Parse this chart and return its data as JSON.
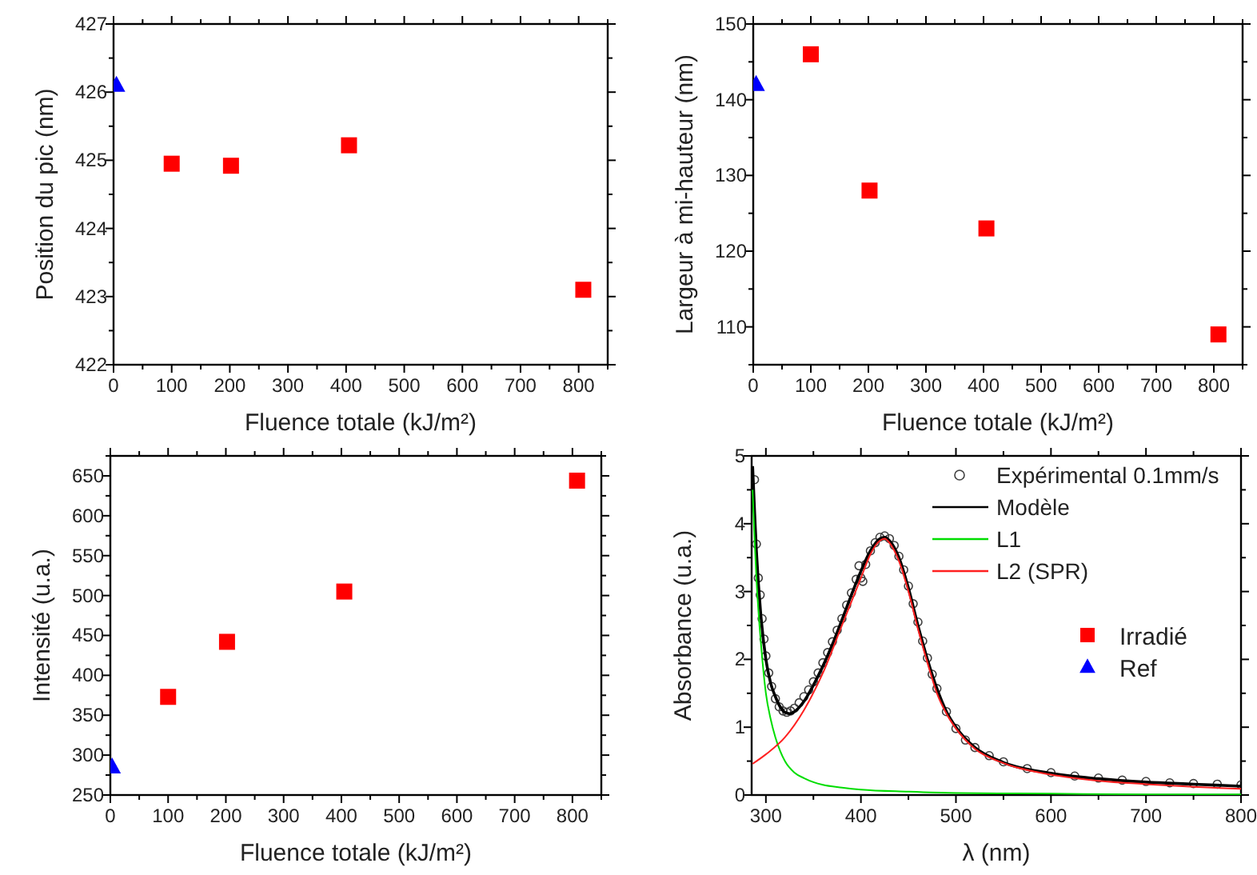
{
  "chart_data": [
    {
      "type": "scatter",
      "xlabel": "Fluence totale (kJ/m²)",
      "ylabel": "Position du pic (nm)",
      "xlim": [
        0,
        850
      ],
      "xticks": [
        0,
        100,
        200,
        300,
        400,
        500,
        600,
        700,
        800
      ],
      "ylim": [
        422,
        427
      ],
      "yticks": [
        422,
        423,
        424,
        425,
        426,
        427
      ],
      "legend": "bottom right",
      "series": [
        {
          "name": "Irradié",
          "color": "#ff0000",
          "marker": "square",
          "x": [
            100,
            202,
            405,
            808
          ],
          "values": [
            424.95,
            424.92,
            425.22,
            423.1
          ]
        },
        {
          "name": "Ref",
          "color": "#0000ff",
          "marker": "triangle",
          "x": [
            5
          ],
          "values": [
            426.1
          ]
        }
      ]
    },
    {
      "type": "scatter",
      "xlabel": "Fluence totale (kJ/m²)",
      "ylabel": "Largeur à mi-hauteur (nm)",
      "xlim": [
        0,
        850
      ],
      "xticks": [
        0,
        100,
        200,
        300,
        400,
        500,
        600,
        700,
        800
      ],
      "ylim": [
        105,
        150
      ],
      "yticks": [
        110,
        120,
        130,
        140,
        150
      ],
      "legend": false,
      "series": [
        {
          "color": "#ff0000",
          "marker": "square",
          "x": [
            100,
            202,
            405,
            808
          ],
          "values": [
            146,
            128,
            123,
            109
          ]
        },
        {
          "color": "#0000ff",
          "marker": "triangle",
          "x": [
            5
          ],
          "values": [
            142
          ]
        }
      ]
    },
    {
      "type": "scatter",
      "xlabel": "Fluence totale (kJ/m²)",
      "ylabel": "Intensité (u.a.)",
      "xlim": [
        0,
        850
      ],
      "xticks": [
        0,
        100,
        200,
        300,
        400,
        500,
        600,
        700,
        800
      ],
      "ylim": [
        250,
        675
      ],
      "yticks": [
        250,
        300,
        350,
        400,
        450,
        500,
        550,
        600,
        650
      ],
      "legend": false,
      "series": [
        {
          "color": "#ff0000",
          "marker": "square",
          "x": [
            100,
            202,
            405,
            808
          ],
          "values": [
            373,
            442,
            505,
            644
          ]
        },
        {
          "color": "#0000ff",
          "marker": "triangle",
          "x": [
            3
          ],
          "values": [
            285
          ]
        }
      ]
    },
    {
      "type": "line",
      "xlabel": "λ (nm)",
      "ylabel": "Absorbance (u.a.)",
      "xlim": [
        285,
        800
      ],
      "xticks": [
        300,
        400,
        500,
        600,
        700,
        800
      ],
      "ylim": [
        0,
        5
      ],
      "yticks": [
        0,
        1,
        2,
        3,
        4,
        5
      ],
      "legend": "top right",
      "series": [
        {
          "name": "Expérimental 0.1mm/s",
          "type": "scatter",
          "marker": "circle",
          "color": "#404040",
          "x": [
            288,
            290,
            292,
            294,
            296,
            298,
            300,
            303,
            306,
            310,
            314,
            318,
            322,
            326,
            330,
            335,
            340,
            345,
            350,
            355,
            360,
            365,
            370,
            375,
            380,
            385,
            390,
            395,
            398,
            400,
            402,
            405,
            410,
            415,
            420,
            425,
            430,
            435,
            440,
            445,
            450,
            455,
            460,
            465,
            470,
            475,
            480,
            490,
            500,
            510,
            520,
            535,
            550,
            575,
            600,
            625,
            650,
            675,
            700,
            725,
            750,
            775,
            800
          ],
          "values": [
            4.65,
            3.7,
            3.2,
            2.95,
            2.6,
            2.3,
            2.05,
            1.8,
            1.6,
            1.42,
            1.3,
            1.24,
            1.22,
            1.24,
            1.28,
            1.36,
            1.45,
            1.55,
            1.67,
            1.8,
            1.95,
            2.1,
            2.26,
            2.43,
            2.6,
            2.8,
            2.98,
            3.18,
            3.38,
            3.2,
            3.15,
            3.4,
            3.6,
            3.72,
            3.8,
            3.82,
            3.78,
            3.68,
            3.52,
            3.32,
            3.08,
            2.82,
            2.55,
            2.27,
            2.02,
            1.78,
            1.57,
            1.23,
            0.98,
            0.81,
            0.7,
            0.58,
            0.49,
            0.39,
            0.33,
            0.28,
            0.25,
            0.22,
            0.2,
            0.18,
            0.17,
            0.16,
            0.15
          ]
        },
        {
          "name": "Modèle",
          "color": "#000000",
          "x": [
            286,
            288,
            290,
            295,
            300,
            305,
            310,
            315,
            320,
            325,
            330,
            340,
            350,
            360,
            370,
            380,
            390,
            400,
            410,
            420,
            425,
            430,
            440,
            450,
            460,
            470,
            480,
            490,
            500,
            520,
            550,
            600,
            650,
            700,
            750,
            800
          ],
          "values": [
            4.85,
            4.2,
            3.6,
            2.6,
            2.0,
            1.65,
            1.45,
            1.3,
            1.22,
            1.2,
            1.23,
            1.38,
            1.62,
            1.9,
            2.22,
            2.58,
            2.95,
            3.3,
            3.6,
            3.78,
            3.8,
            3.75,
            3.5,
            3.05,
            2.5,
            2.0,
            1.57,
            1.23,
            1.0,
            0.7,
            0.48,
            0.32,
            0.24,
            0.19,
            0.16,
            0.13
          ]
        },
        {
          "name": "L1",
          "color": "#00dd00",
          "x": [
            286,
            288,
            290,
            295,
            300,
            305,
            310,
            315,
            320,
            330,
            340,
            350,
            360,
            380,
            400,
            450,
            500,
            600,
            700,
            800
          ],
          "values": [
            4.5,
            3.8,
            3.2,
            2.2,
            1.5,
            1.12,
            0.85,
            0.65,
            0.5,
            0.33,
            0.25,
            0.19,
            0.15,
            0.11,
            0.08,
            0.05,
            0.03,
            0.02,
            0.01,
            0.01
          ]
        },
        {
          "name": "L2 (SPR)",
          "color": "#ff2020",
          "x": [
            286,
            300,
            320,
            340,
            360,
            380,
            400,
            410,
            420,
            425,
            430,
            440,
            450,
            460,
            470,
            480,
            490,
            500,
            520,
            550,
            600,
            650,
            700,
            750,
            800
          ],
          "values": [
            0.46,
            0.6,
            0.85,
            1.25,
            1.8,
            2.5,
            3.2,
            3.55,
            3.75,
            3.78,
            3.72,
            3.45,
            3.0,
            2.45,
            1.95,
            1.5,
            1.2,
            0.98,
            0.68,
            0.47,
            0.3,
            0.21,
            0.16,
            0.12,
            0.09
          ]
        }
      ]
    }
  ]
}
